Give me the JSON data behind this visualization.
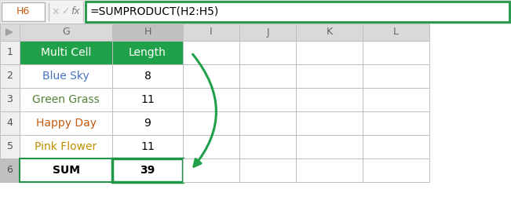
{
  "formula_bar_cell": "H6",
  "formula_bar_text": "=SUMPRODUCT(H2:H5)",
  "col_headers": [
    "G",
    "H",
    "I",
    "J",
    "K",
    "L"
  ],
  "header_row": [
    "Multi Cell",
    "Length"
  ],
  "data_rows": [
    [
      "Blue Sky",
      "8"
    ],
    [
      "Green Grass",
      "11"
    ],
    [
      "Happy Day",
      "9"
    ],
    [
      "Pink Flower",
      "11"
    ]
  ],
  "sum_row": [
    "SUM",
    "39"
  ],
  "header_bg": "#21a04a",
  "header_fg": "#ffffff",
  "sum_border_color": "#1e9646",
  "col_header_bg": "#d9d9d9",
  "col_header_selected_bg": "#c0c0c0",
  "col_header_fg": "#666666",
  "cell_bg": "#ffffff",
  "cell_fg": "#000000",
  "row_num_bg": "#efefef",
  "row_num_selected_bg": "#c0c0c0",
  "grid_color": "#bfbfbf",
  "formula_box_border": "#1e9646",
  "formula_bg": "#ffffff",
  "arrow_color": "#21a04a",
  "blue_sky_color": "#4472c4",
  "green_grass_color": "#548235",
  "happy_day_color": "#c55a11",
  "pink_flower_color": "#bf8f00",
  "fig_w": 6.51,
  "fig_h": 2.6,
  "dpi": 100
}
